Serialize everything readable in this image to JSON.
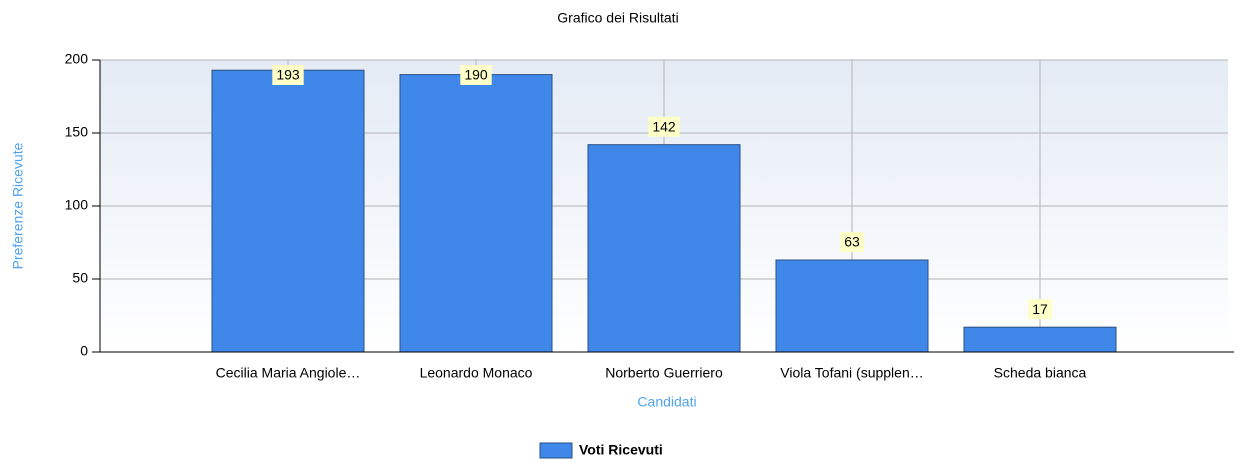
{
  "chart_data": {
    "type": "bar",
    "title": "Grafico dei Risultati",
    "x_label": "Candidati",
    "y_label": "Preferenze Ricevute",
    "categories": [
      "Cecilia Maria Angiole…",
      "Leonardo Monaco",
      "Norberto Guerriero",
      "Viola Tofani (supplen…",
      "Scheda bianca"
    ],
    "series": [
      {
        "name": "Voti Ricevuti",
        "color": "#3f88ea",
        "values": [
          193,
          190,
          142,
          63,
          17
        ]
      }
    ],
    "ylim": [
      0,
      200
    ],
    "yticks": [
      0,
      50,
      100,
      150,
      200
    ],
    "grid": true,
    "legend": "bottom"
  }
}
